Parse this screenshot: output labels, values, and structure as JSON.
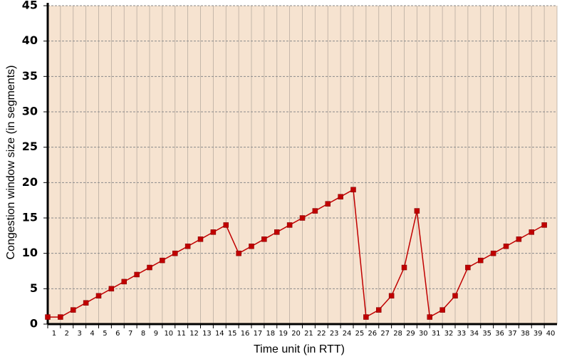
{
  "chart_data": {
    "type": "line",
    "x_label": "Time unit (in RTT)",
    "y_label": "Congestion window size (in segments)",
    "x": [
      1,
      2,
      3,
      4,
      5,
      6,
      7,
      8,
      9,
      10,
      11,
      12,
      13,
      14,
      15,
      16,
      17,
      18,
      19,
      20,
      21,
      22,
      23,
      24,
      25,
      26,
      27,
      28,
      29,
      30,
      31,
      32,
      33,
      34,
      35,
      36,
      37,
      38,
      39,
      40
    ],
    "series": [
      {
        "color": "#c00000",
        "values": [
          1,
          1,
          2,
          3,
          4,
          5,
          6,
          7,
          8,
          9,
          10,
          11,
          12,
          13,
          14,
          10,
          11,
          12,
          13,
          14,
          15,
          16,
          17,
          18,
          19,
          1,
          2,
          4,
          8,
          16,
          1,
          2,
          4,
          8,
          9,
          10,
          11,
          12,
          13,
          14
        ]
      }
    ],
    "xlim": [
      1,
      41
    ],
    "ylim": [
      0,
      45
    ],
    "yticks": [
      0,
      5,
      10,
      15,
      20,
      25,
      30,
      35,
      40,
      45
    ],
    "grid": true,
    "background": "#f6e3d0"
  }
}
